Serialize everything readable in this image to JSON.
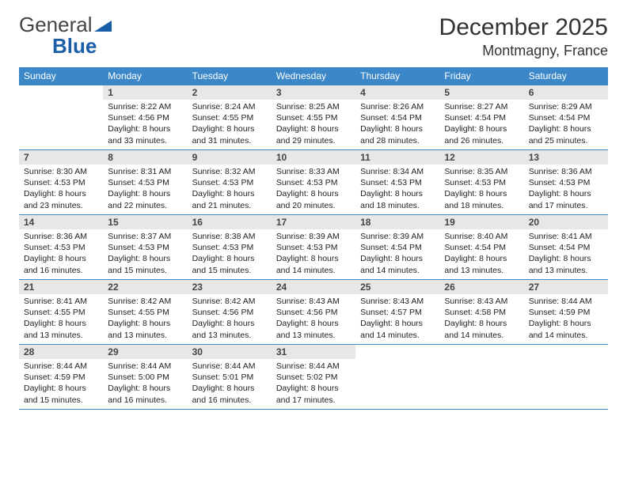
{
  "logo": {
    "text1": "General",
    "text2": "Blue"
  },
  "colors": {
    "header_bg": "#3b87c8",
    "row_divider": "#3b87c8",
    "daynum_bg": "#e7e7e7",
    "text": "#222222",
    "logo_blue": "#1a5ea8"
  },
  "title": "December 2025",
  "subtitle": "Montmagny, France",
  "weekdays": [
    "Sunday",
    "Monday",
    "Tuesday",
    "Wednesday",
    "Thursday",
    "Friday",
    "Saturday"
  ],
  "first_weekday_index": 1,
  "days": [
    {
      "n": "1",
      "sunrise": "8:22 AM",
      "sunset": "4:56 PM",
      "daylight": "8 hours and 33 minutes."
    },
    {
      "n": "2",
      "sunrise": "8:24 AM",
      "sunset": "4:55 PM",
      "daylight": "8 hours and 31 minutes."
    },
    {
      "n": "3",
      "sunrise": "8:25 AM",
      "sunset": "4:55 PM",
      "daylight": "8 hours and 29 minutes."
    },
    {
      "n": "4",
      "sunrise": "8:26 AM",
      "sunset": "4:54 PM",
      "daylight": "8 hours and 28 minutes."
    },
    {
      "n": "5",
      "sunrise": "8:27 AM",
      "sunset": "4:54 PM",
      "daylight": "8 hours and 26 minutes."
    },
    {
      "n": "6",
      "sunrise": "8:29 AM",
      "sunset": "4:54 PM",
      "daylight": "8 hours and 25 minutes."
    },
    {
      "n": "7",
      "sunrise": "8:30 AM",
      "sunset": "4:53 PM",
      "daylight": "8 hours and 23 minutes."
    },
    {
      "n": "8",
      "sunrise": "8:31 AM",
      "sunset": "4:53 PM",
      "daylight": "8 hours and 22 minutes."
    },
    {
      "n": "9",
      "sunrise": "8:32 AM",
      "sunset": "4:53 PM",
      "daylight": "8 hours and 21 minutes."
    },
    {
      "n": "10",
      "sunrise": "8:33 AM",
      "sunset": "4:53 PM",
      "daylight": "8 hours and 20 minutes."
    },
    {
      "n": "11",
      "sunrise": "8:34 AM",
      "sunset": "4:53 PM",
      "daylight": "8 hours and 18 minutes."
    },
    {
      "n": "12",
      "sunrise": "8:35 AM",
      "sunset": "4:53 PM",
      "daylight": "8 hours and 18 minutes."
    },
    {
      "n": "13",
      "sunrise": "8:36 AM",
      "sunset": "4:53 PM",
      "daylight": "8 hours and 17 minutes."
    },
    {
      "n": "14",
      "sunrise": "8:36 AM",
      "sunset": "4:53 PM",
      "daylight": "8 hours and 16 minutes."
    },
    {
      "n": "15",
      "sunrise": "8:37 AM",
      "sunset": "4:53 PM",
      "daylight": "8 hours and 15 minutes."
    },
    {
      "n": "16",
      "sunrise": "8:38 AM",
      "sunset": "4:53 PM",
      "daylight": "8 hours and 15 minutes."
    },
    {
      "n": "17",
      "sunrise": "8:39 AM",
      "sunset": "4:53 PM",
      "daylight": "8 hours and 14 minutes."
    },
    {
      "n": "18",
      "sunrise": "8:39 AM",
      "sunset": "4:54 PM",
      "daylight": "8 hours and 14 minutes."
    },
    {
      "n": "19",
      "sunrise": "8:40 AM",
      "sunset": "4:54 PM",
      "daylight": "8 hours and 13 minutes."
    },
    {
      "n": "20",
      "sunrise": "8:41 AM",
      "sunset": "4:54 PM",
      "daylight": "8 hours and 13 minutes."
    },
    {
      "n": "21",
      "sunrise": "8:41 AM",
      "sunset": "4:55 PM",
      "daylight": "8 hours and 13 minutes."
    },
    {
      "n": "22",
      "sunrise": "8:42 AM",
      "sunset": "4:55 PM",
      "daylight": "8 hours and 13 minutes."
    },
    {
      "n": "23",
      "sunrise": "8:42 AM",
      "sunset": "4:56 PM",
      "daylight": "8 hours and 13 minutes."
    },
    {
      "n": "24",
      "sunrise": "8:43 AM",
      "sunset": "4:56 PM",
      "daylight": "8 hours and 13 minutes."
    },
    {
      "n": "25",
      "sunrise": "8:43 AM",
      "sunset": "4:57 PM",
      "daylight": "8 hours and 14 minutes."
    },
    {
      "n": "26",
      "sunrise": "8:43 AM",
      "sunset": "4:58 PM",
      "daylight": "8 hours and 14 minutes."
    },
    {
      "n": "27",
      "sunrise": "8:44 AM",
      "sunset": "4:59 PM",
      "daylight": "8 hours and 14 minutes."
    },
    {
      "n": "28",
      "sunrise": "8:44 AM",
      "sunset": "4:59 PM",
      "daylight": "8 hours and 15 minutes."
    },
    {
      "n": "29",
      "sunrise": "8:44 AM",
      "sunset": "5:00 PM",
      "daylight": "8 hours and 16 minutes."
    },
    {
      "n": "30",
      "sunrise": "8:44 AM",
      "sunset": "5:01 PM",
      "daylight": "8 hours and 16 minutes."
    },
    {
      "n": "31",
      "sunrise": "8:44 AM",
      "sunset": "5:02 PM",
      "daylight": "8 hours and 17 minutes."
    }
  ],
  "labels": {
    "sunrise": "Sunrise:",
    "sunset": "Sunset:",
    "daylight": "Daylight:"
  }
}
